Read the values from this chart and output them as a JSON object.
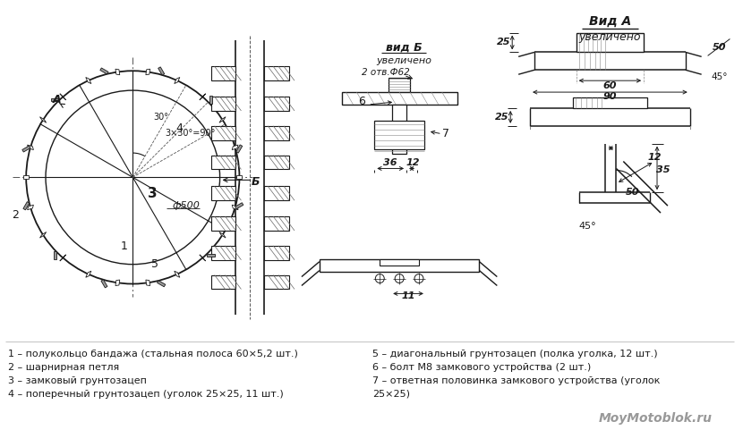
{
  "bg_color": "#ffffff",
  "legend_items_left": [
    "1 – полукольцо бандажа (стальная полоса 60×5,2 шт.)",
    "2 – шарнирная петля",
    "3 – замковый грунтозацеп",
    "4 – поперечный грунтозацеп (уголок 25×25, 11 шт.)"
  ],
  "legend_items_right": [
    "5 – диагональный грунтозацеп (полка уголка, 12 шт.)",
    "6 – болт М8 замкового устройства (2 шт.)",
    "7 – ответная половинка замкового устройства (уголок",
    "25×25)"
  ],
  "watermark": "MoyMotoblok.ru",
  "line_color": "#1a1a1a",
  "text_color": "#1a1a1a",
  "font_size_legend": 8.0,
  "fig_width": 8.3,
  "fig_height": 5.0,
  "dpi": 100
}
